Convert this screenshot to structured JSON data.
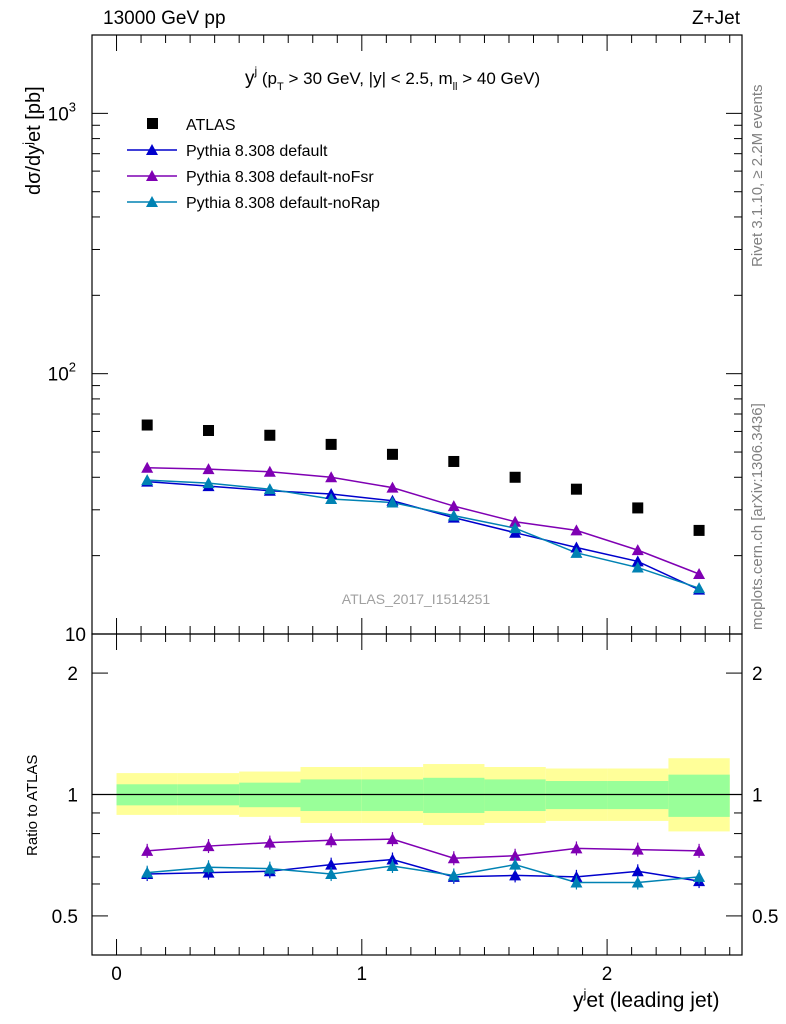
{
  "header": {
    "left": "13000 GeV pp",
    "right": "Z+Jet"
  },
  "side_text": {
    "rivet": "Rivet 3.1.10, ≥ 2.2M events",
    "mcplots": "mcplots.cern.ch [arXiv:1306.3436]"
  },
  "watermark": "ATLAS_2017_I1514251",
  "legend": {
    "atlas": "ATLAS",
    "s1": "Pythia 8.308 default",
    "s2": "Pythia 8.308 default-noFsr",
    "s3": "Pythia 8.308 default-noRap"
  },
  "colors": {
    "data": "#000000",
    "s1": "#0000cc",
    "s2": "#7f00b3",
    "s3": "#0082b3",
    "band_inner": "#99ff99",
    "band_outer": "#ffff99"
  },
  "chart_data": [
    {
      "type": "scatter",
      "panel": "main",
      "title": "y^j (p_T > 30 GeV, |y| < 2.5, m_ll > 40 GeV)",
      "ylabel": "dσ/dy^jet [pb]",
      "yscale": "log",
      "ylim": [
        10,
        2000
      ],
      "xlim": [
        -0.1,
        2.55
      ],
      "yticks": [
        "10",
        "10^2",
        "10^3"
      ],
      "x": [
        0.125,
        0.375,
        0.625,
        0.875,
        1.125,
        1.375,
        1.625,
        1.875,
        2.125,
        2.375
      ],
      "series": [
        {
          "name": "ATLAS",
          "marker": "square",
          "values": [
            63.5,
            60.5,
            58.0,
            53.5,
            49.0,
            46.0,
            40.0,
            36.0,
            30.5,
            25.0
          ]
        },
        {
          "name": "Pythia 8.308 default",
          "values": [
            38.5,
            37.0,
            35.5,
            34.5,
            32.5,
            28.0,
            24.5,
            21.5,
            19.0,
            14.8
          ]
        },
        {
          "name": "Pythia 8.308 default-noFsr",
          "values": [
            43.5,
            43.0,
            42.0,
            40.0,
            36.5,
            31.0,
            27.0,
            25.0,
            21.0,
            17.0
          ]
        },
        {
          "name": "Pythia 8.308 default-noRap",
          "values": [
            39.0,
            38.0,
            36.0,
            33.0,
            32.0,
            28.5,
            25.5,
            20.5,
            18.0,
            15.0
          ]
        }
      ]
    },
    {
      "type": "line",
      "panel": "ratio",
      "ylabel": "Ratio to ATLAS",
      "xlabel": "y^jet (leading jet)",
      "yscale": "log",
      "ylim": [
        0.4,
        2.5
      ],
      "xlim": [
        -0.1,
        2.55
      ],
      "xticks": [
        "0",
        "1",
        "2"
      ],
      "yticks": [
        "0.5",
        "1",
        "2"
      ],
      "x": [
        0.125,
        0.375,
        0.625,
        0.875,
        1.125,
        1.375,
        1.625,
        1.875,
        2.125,
        2.375
      ],
      "band_edges": [
        0,
        0.25,
        0.5,
        0.75,
        1.0,
        1.25,
        1.5,
        1.75,
        2.0,
        2.25,
        2.5
      ],
      "band_inner": {
        "lo": [
          0.94,
          0.94,
          0.93,
          0.91,
          0.91,
          0.9,
          0.91,
          0.92,
          0.92,
          0.88
        ],
        "hi": [
          1.06,
          1.06,
          1.07,
          1.09,
          1.09,
          1.1,
          1.09,
          1.08,
          1.08,
          1.12
        ]
      },
      "band_outer": {
        "lo": [
          0.89,
          0.89,
          0.88,
          0.85,
          0.85,
          0.84,
          0.85,
          0.86,
          0.86,
          0.81
        ],
        "hi": [
          1.13,
          1.13,
          1.14,
          1.17,
          1.17,
          1.19,
          1.17,
          1.16,
          1.16,
          1.23
        ]
      },
      "series": [
        {
          "name": "Pythia 8.308 default",
          "values": [
            0.635,
            0.64,
            0.645,
            0.67,
            0.69,
            0.625,
            0.63,
            0.625,
            0.645,
            0.61
          ]
        },
        {
          "name": "Pythia 8.308 default-noFsr",
          "values": [
            0.725,
            0.745,
            0.76,
            0.77,
            0.775,
            0.695,
            0.705,
            0.735,
            0.73,
            0.725
          ]
        },
        {
          "name": "Pythia 8.308 default-noRap",
          "values": [
            0.64,
            0.66,
            0.655,
            0.635,
            0.665,
            0.63,
            0.67,
            0.605,
            0.605,
            0.625
          ]
        }
      ]
    }
  ]
}
